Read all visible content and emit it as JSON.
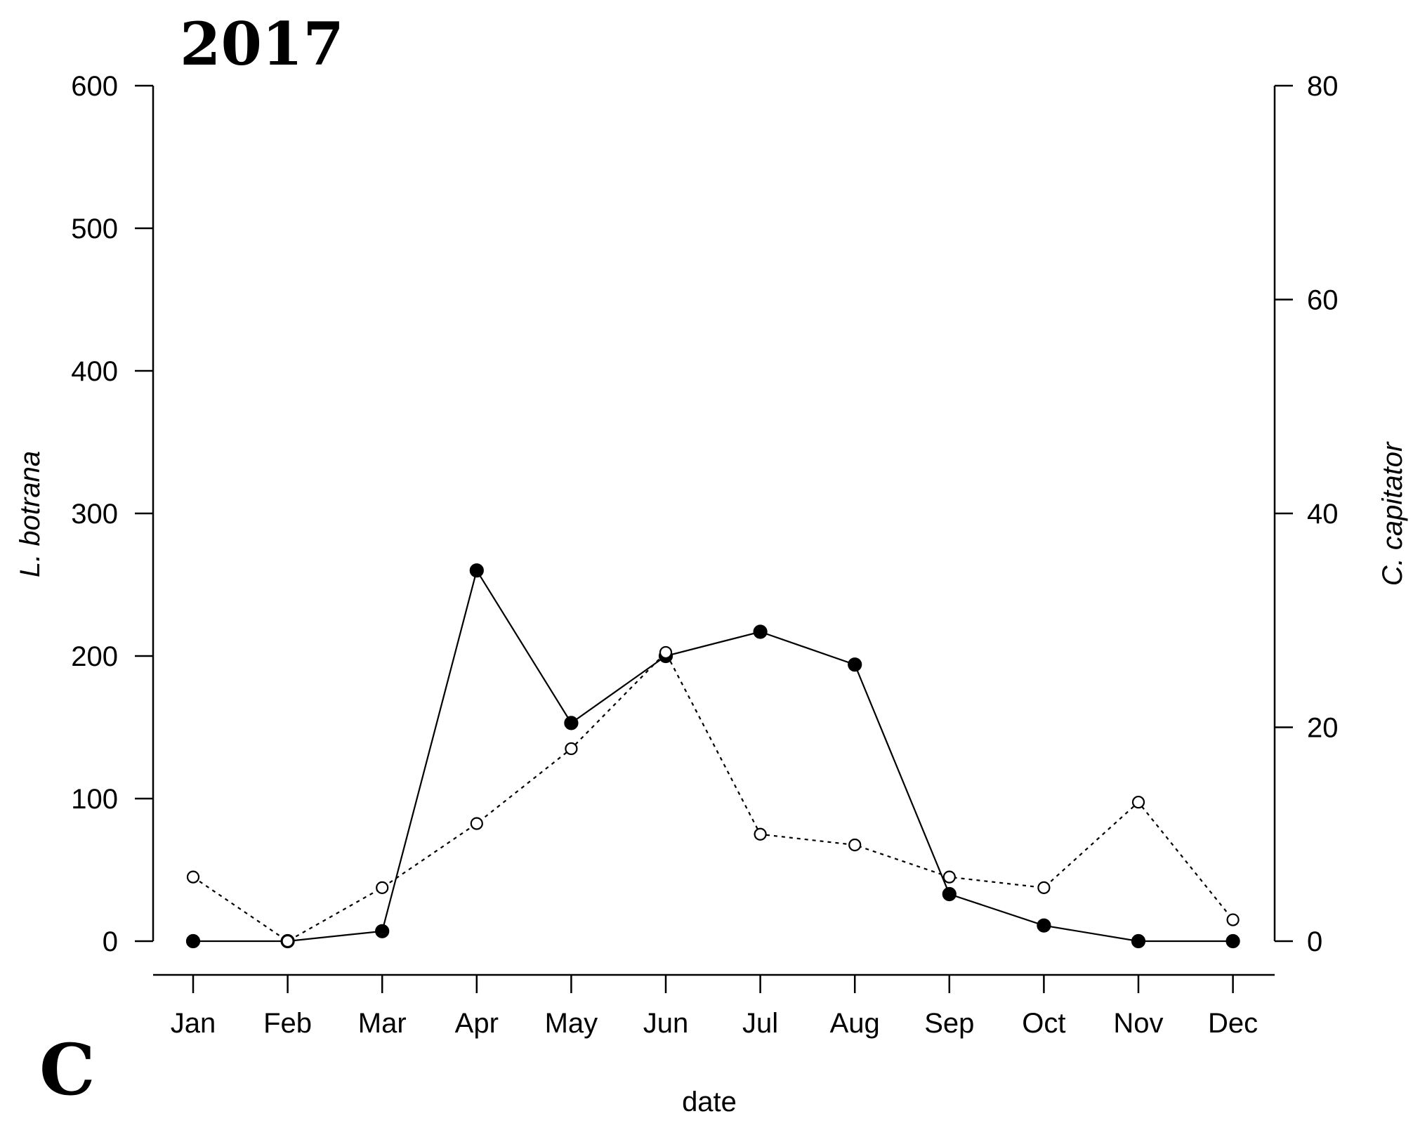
{
  "chart_data": {
    "type": "line",
    "title": "2017",
    "panel_label": "C",
    "xlabel": "date",
    "categories": [
      "Jan",
      "Feb",
      "Mar",
      "Apr",
      "May",
      "Jun",
      "Jul",
      "Aug",
      "Sep",
      "Oct",
      "Nov",
      "Dec"
    ],
    "y_left": {
      "label": "L. botrana",
      "ylim": [
        0,
        600
      ],
      "ticks": [
        0,
        100,
        200,
        300,
        400,
        500,
        600
      ]
    },
    "y_right": {
      "label": "C. capitator",
      "ylim": [
        0,
        80
      ],
      "ticks": [
        0,
        20,
        40,
        60,
        80
      ]
    },
    "grid": false,
    "series": [
      {
        "axis": "left",
        "line": "solid",
        "marker": "filled-circle",
        "values": [
          0,
          0,
          7,
          260,
          153,
          200,
          217,
          194,
          33,
          11,
          0,
          0
        ]
      },
      {
        "axis": "right",
        "line": "dotted",
        "marker": "open-circle",
        "values": [
          6,
          0,
          5,
          11,
          18,
          27,
          10,
          9,
          6,
          5,
          13,
          2
        ]
      }
    ],
    "colors": {
      "line": "#000000",
      "background": "#ffffff"
    }
  }
}
